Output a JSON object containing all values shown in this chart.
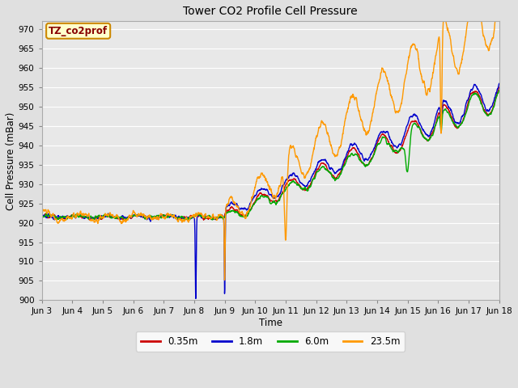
{
  "title": "Tower CO2 Profile Cell Pressure",
  "xlabel": "Time",
  "ylabel": "Cell Pressure (mBar)",
  "ylim": [
    900,
    972
  ],
  "yticks": [
    900,
    905,
    910,
    915,
    920,
    925,
    930,
    935,
    940,
    945,
    950,
    955,
    960,
    965,
    970
  ],
  "xtick_labels": [
    "Jun 3",
    "Jun 4",
    "Jun 5",
    "Jun 6",
    "Jun 7",
    "Jun 8",
    "Jun 9",
    "Jun 10",
    "Jun 11",
    "Jun 12",
    "Jun 13",
    "Jun 14",
    "Jun 15",
    "Jun 16",
    "Jun 17",
    "Jun 18"
  ],
  "legend_labels": [
    "0.35m",
    "1.8m",
    "6.0m",
    "23.5m"
  ],
  "legend_colors": [
    "#cc0000",
    "#0000cc",
    "#00aa00",
    "#ff9900"
  ],
  "line_width": 1.0,
  "bg_color": "#e0e0e0",
  "plot_bg_color": "#e8e8e8",
  "grid_color": "#ffffff",
  "label_box_color": "#ffffcc",
  "label_box_edge": "#cc8800",
  "label_text": "TZ_co2prof",
  "label_text_color": "#880000",
  "figsize": [
    6.4,
    4.8
  ],
  "dpi": 100
}
